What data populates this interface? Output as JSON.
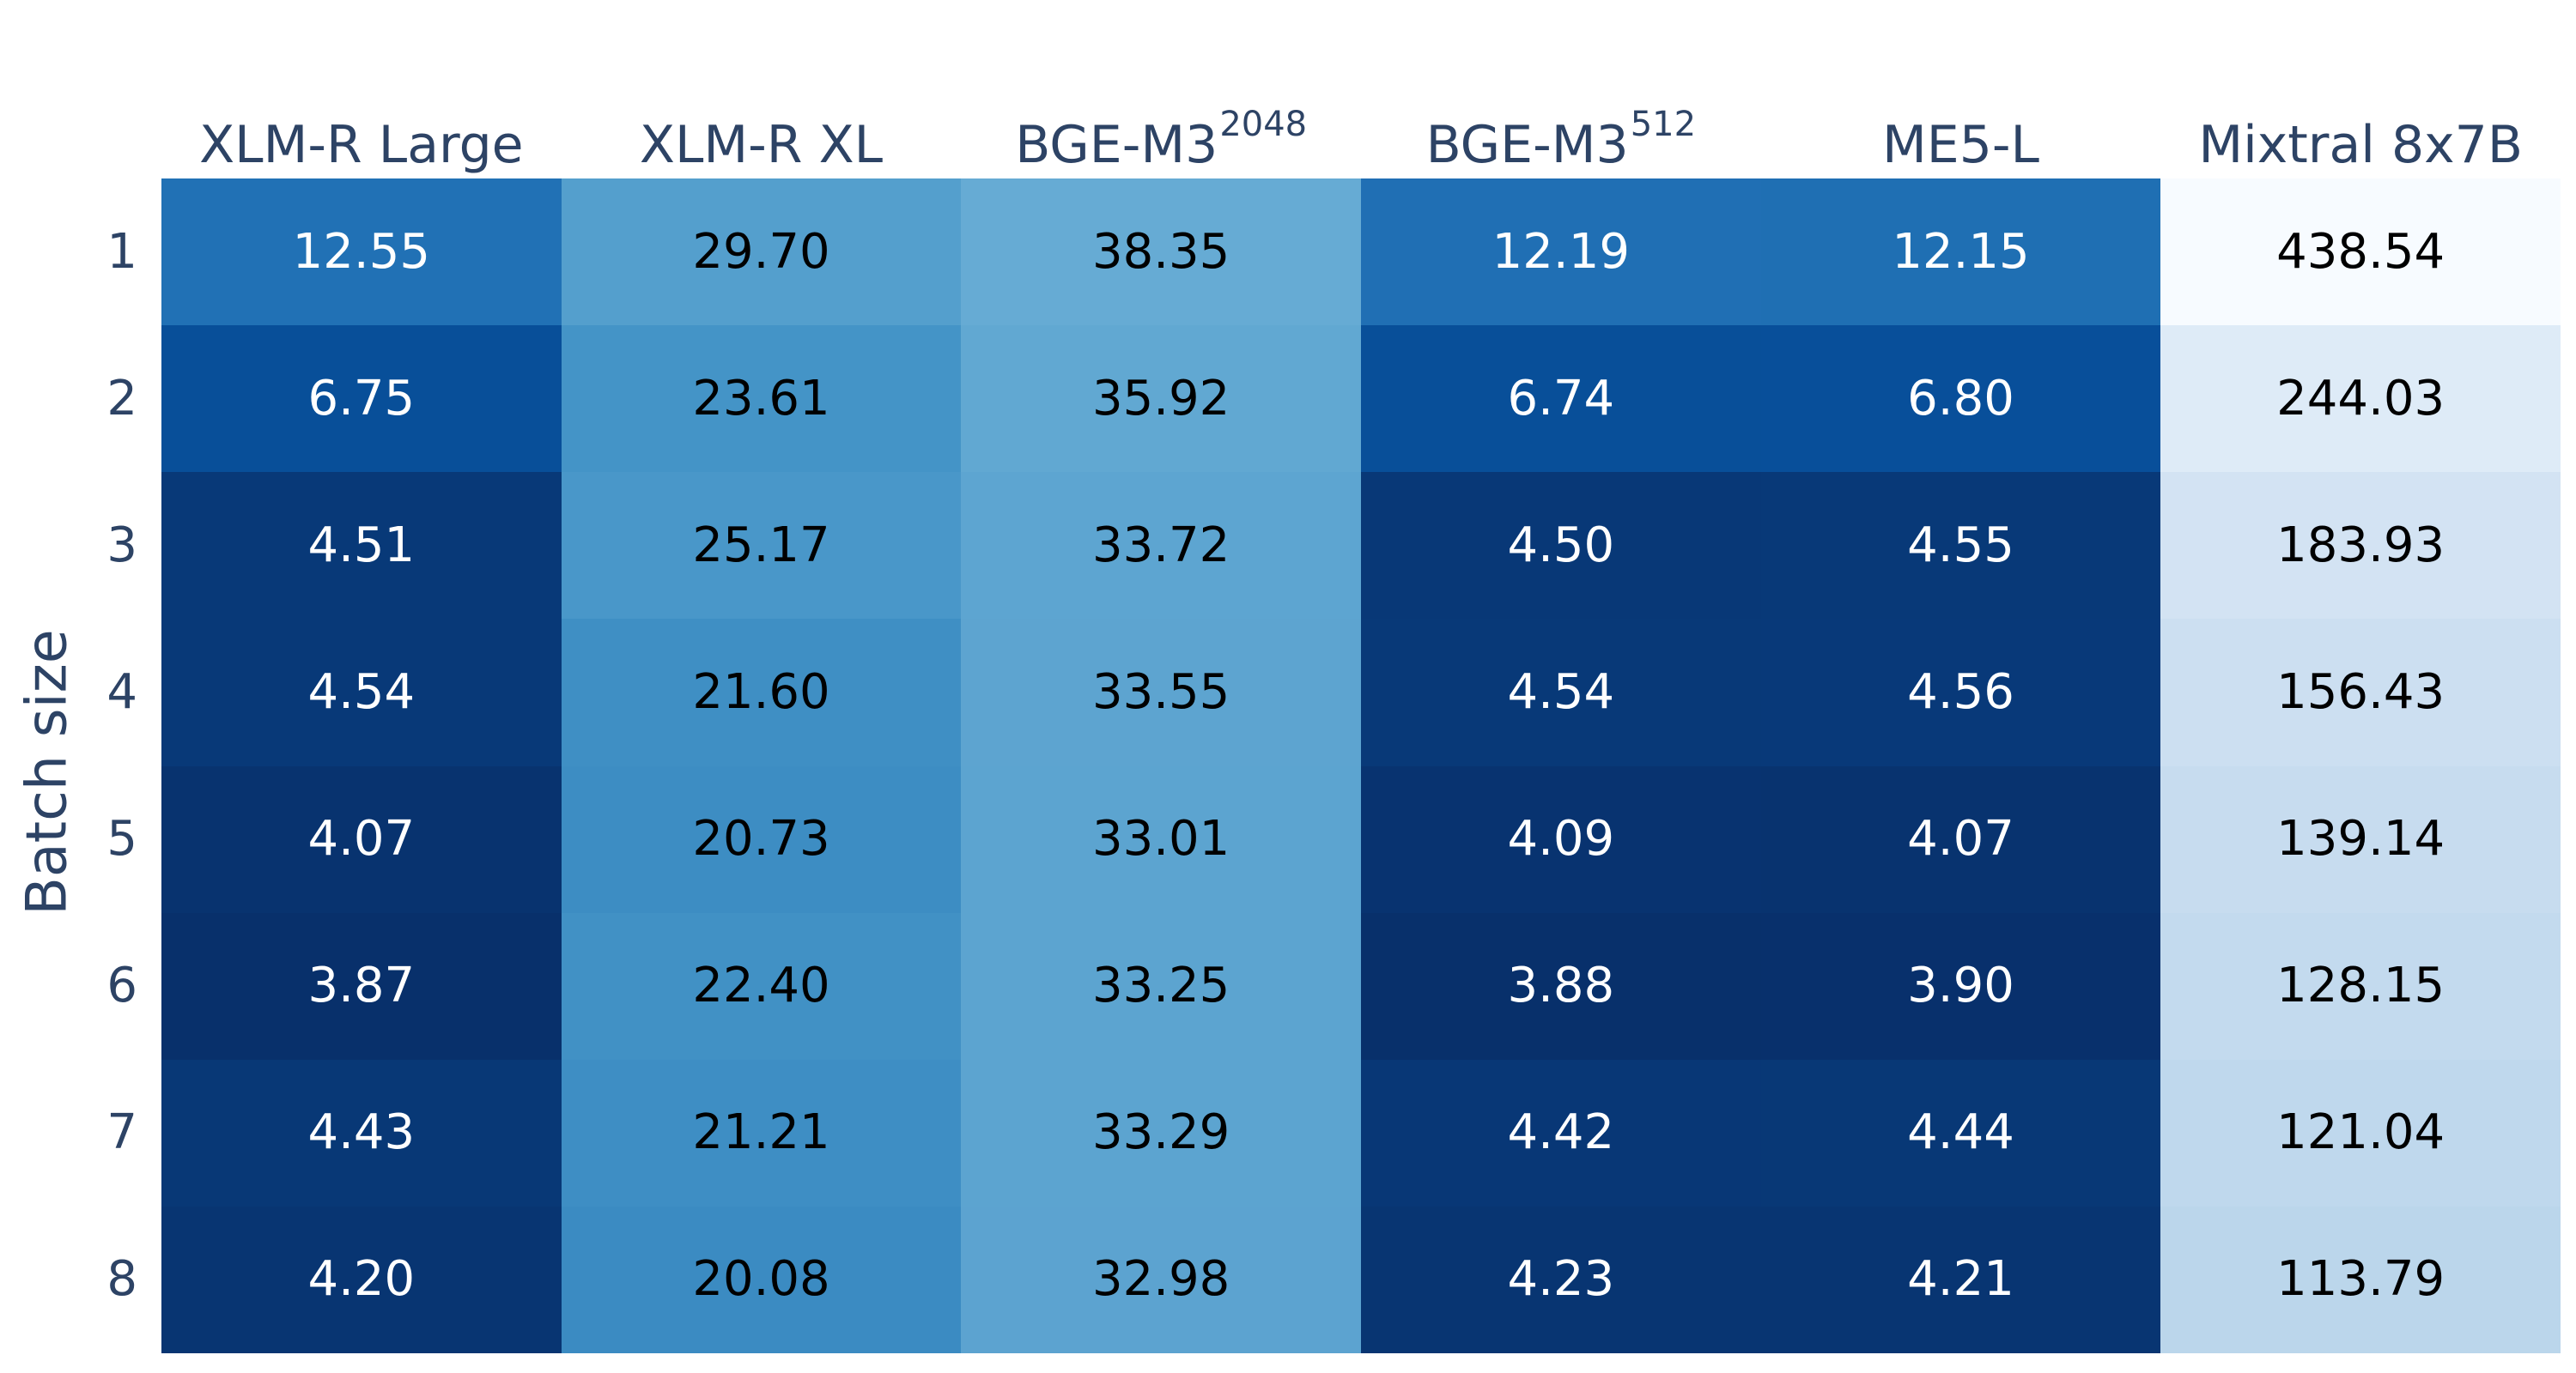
{
  "figure": {
    "axis_text_color": "#2d4365",
    "cell_text_light": "#ffffff",
    "cell_text_dark": "#000000",
    "background": "#ffffff"
  },
  "chart_data": {
    "type": "heatmap",
    "title": "",
    "xlabel": "",
    "ylabel": "Batch size",
    "legend": "none",
    "grid": false,
    "columns": [
      {
        "label": "XLM-R Large",
        "sup": ""
      },
      {
        "label": "XLM-R XL",
        "sup": ""
      },
      {
        "label": "BGE-M3",
        "sup": "2048"
      },
      {
        "label": "BGE-M3",
        "sup": "512"
      },
      {
        "label": "ME5-L",
        "sup": ""
      },
      {
        "label": "Mixtral 8x7B",
        "sup": ""
      }
    ],
    "rows": [
      "1",
      "2",
      "3",
      "4",
      "5",
      "6",
      "7",
      "8"
    ],
    "values": [
      [
        12.55,
        29.7,
        38.35,
        12.19,
        12.15,
        438.54
      ],
      [
        6.75,
        23.61,
        35.92,
        6.74,
        6.8,
        244.03
      ],
      [
        4.51,
        25.17,
        33.72,
        4.5,
        4.55,
        183.93
      ],
      [
        4.54,
        21.6,
        33.55,
        4.54,
        4.56,
        156.43
      ],
      [
        4.07,
        20.73,
        33.01,
        4.09,
        4.07,
        139.14
      ],
      [
        3.87,
        22.4,
        33.25,
        3.88,
        3.9,
        128.15
      ],
      [
        4.43,
        21.21,
        33.29,
        4.42,
        4.44,
        121.04
      ],
      [
        4.2,
        20.08,
        32.98,
        4.23,
        4.21,
        113.79
      ]
    ],
    "value_format": ".2f",
    "colormap": {
      "name": "Blues_reversed",
      "scale": "log",
      "vmin": 3.87,
      "vmax": 438.54,
      "anchors": [
        "#f7fbff",
        "#deebf7",
        "#c6dbef",
        "#9ecae1",
        "#6baed6",
        "#4292c6",
        "#2171b5",
        "#08519c",
        "#08306b"
      ]
    }
  }
}
